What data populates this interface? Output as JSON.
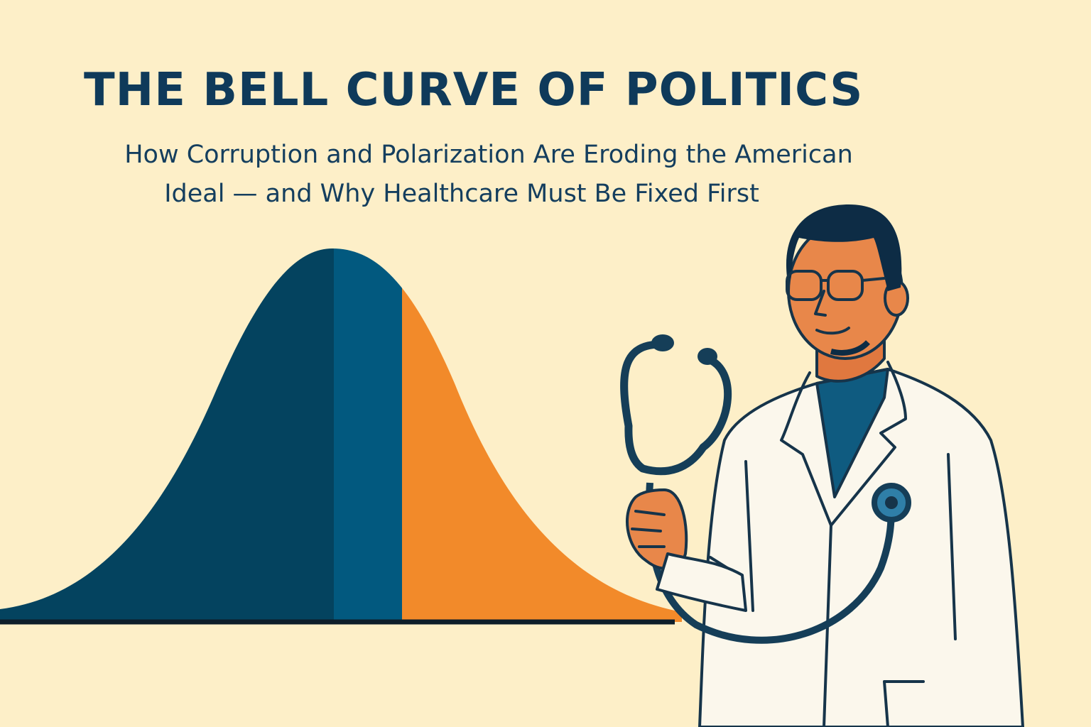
{
  "header": {
    "title": "THE BELL CURVE OF POLITICS",
    "subtitle": [
      "How Corruption and Polarization Are Eroding the American",
      "Ideal — and Why Healthcare Must Be Fixed First"
    ]
  }
}
